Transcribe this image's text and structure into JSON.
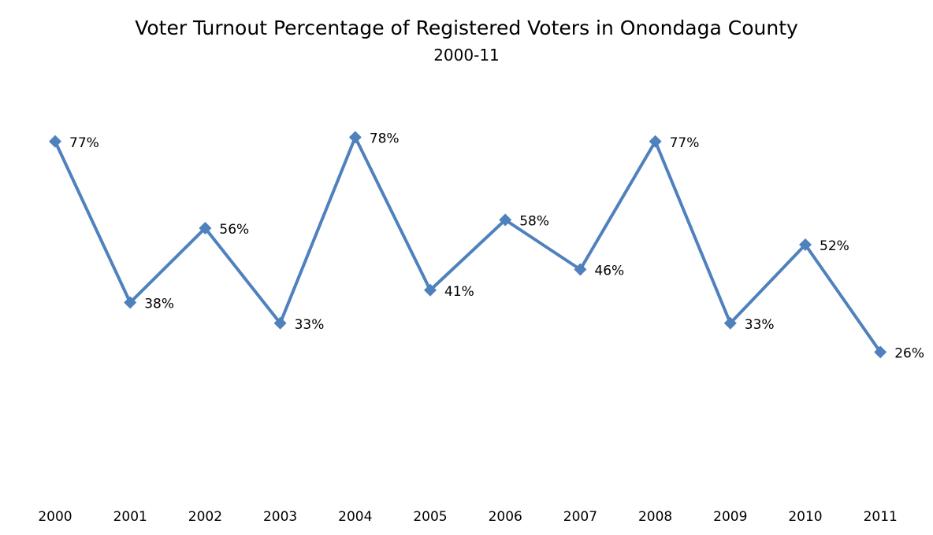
{
  "chart_data": {
    "type": "line",
    "title": "Voter Turnout Percentage of Registered Voters in Onondaga County",
    "subtitle": "2000-11",
    "xlabel": "",
    "ylabel": "",
    "categories": [
      "2000",
      "2001",
      "2002",
      "2003",
      "2004",
      "2005",
      "2006",
      "2007",
      "2008",
      "2009",
      "2010",
      "2011"
    ],
    "series": [
      {
        "values": [
          77,
          38,
          56,
          33,
          78,
          41,
          58,
          46,
          77,
          33,
          52,
          26
        ],
        "labels": [
          "77%",
          "38%",
          "56%",
          "33%",
          "78%",
          "41%",
          "58%",
          "46%",
          "77%",
          "33%",
          "52%",
          "26%"
        ],
        "color": "#4F81BD",
        "marker": "diamond"
      }
    ],
    "ylim": [
      0,
      100
    ],
    "grid": false,
    "legend": "none",
    "y_axis_visible": false
  }
}
